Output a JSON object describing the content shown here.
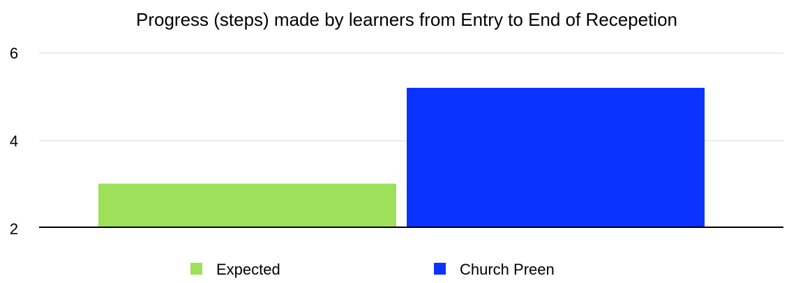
{
  "chart_data": {
    "type": "bar",
    "title": "Progress (steps) made by learners from Entry to End of Recepetion",
    "xlabel": "",
    "ylabel": "",
    "ylim": [
      2,
      6
    ],
    "yticks": [
      2,
      4,
      6
    ],
    "categories": [
      ""
    ],
    "series": [
      {
        "name": "Expected",
        "values": [
          3
        ],
        "color": "#9ee05a"
      },
      {
        "name": "Church Preen",
        "values": [
          5.2
        ],
        "color": "#0b33ff"
      }
    ],
    "grid": true,
    "legend": "bottom"
  }
}
